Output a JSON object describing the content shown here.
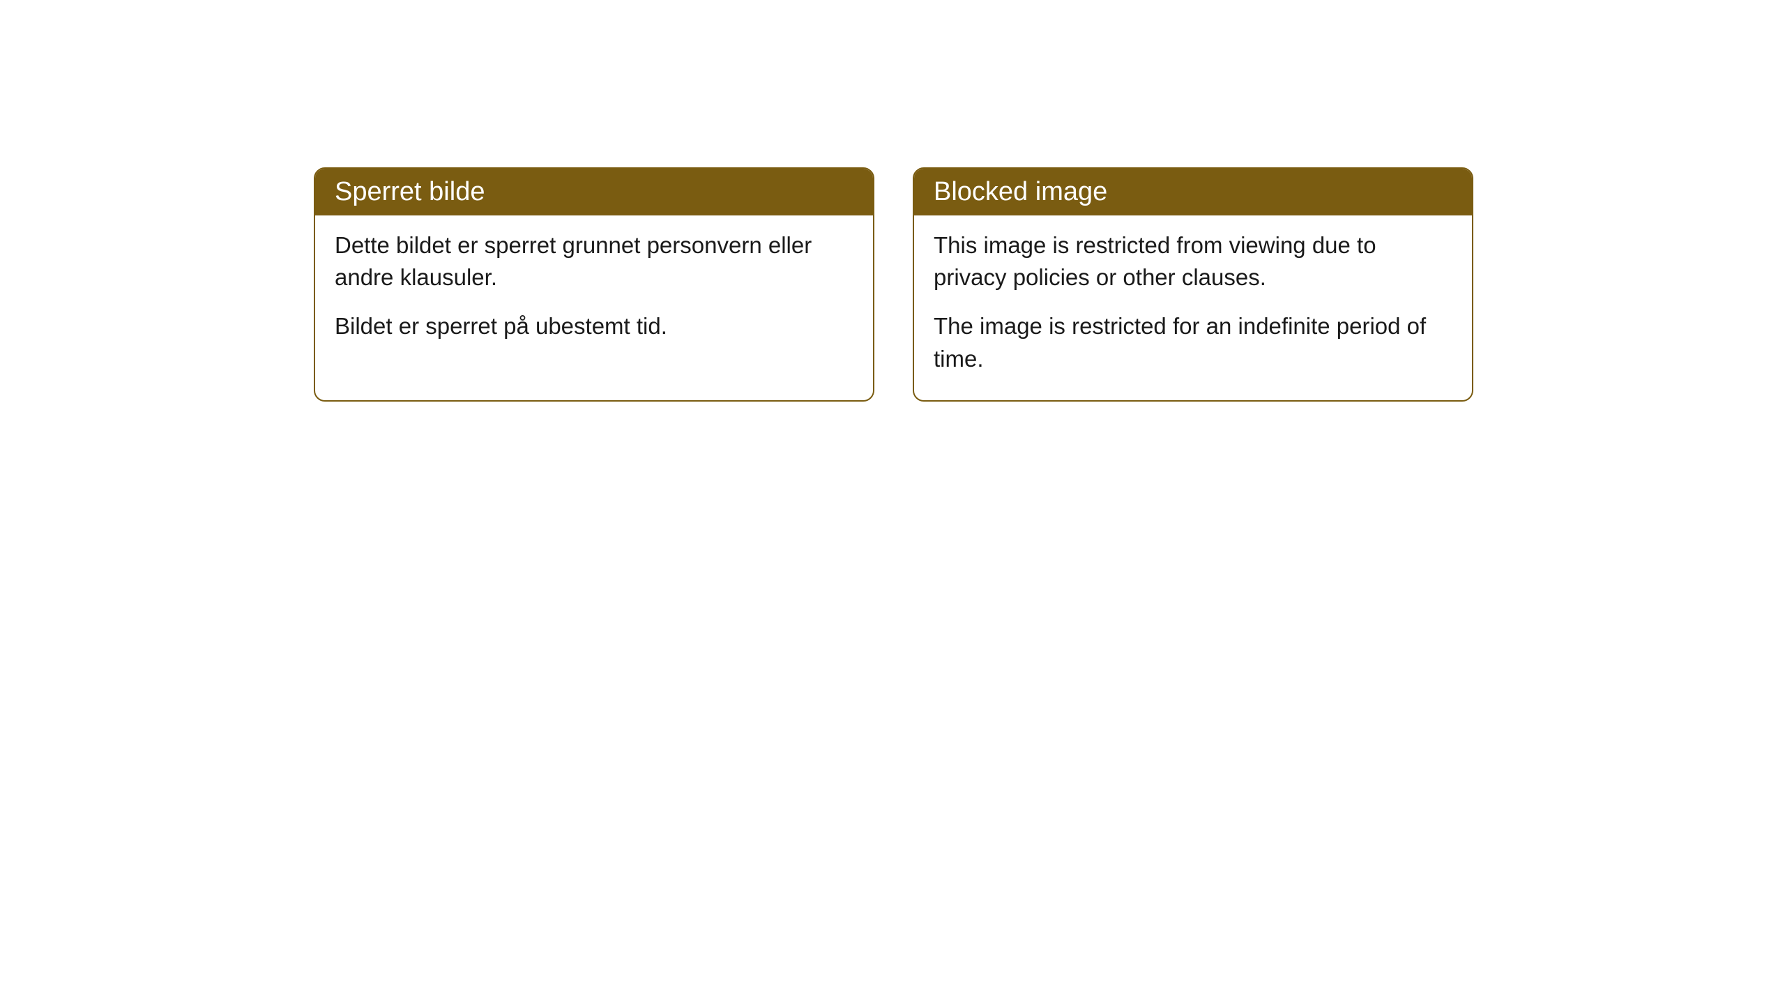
{
  "cards": [
    {
      "title": "Sperret bilde",
      "paragraph1": "Dette bildet er sperret grunnet personvern eller andre klausuler.",
      "paragraph2": "Bildet er sperret på ubestemt tid."
    },
    {
      "title": "Blocked image",
      "paragraph1": "This image is restricted from viewing due to privacy policies or other clauses.",
      "paragraph2": "The image is restricted for an indefinite period of time."
    }
  ],
  "styling": {
    "header_bg": "#7a5c11",
    "header_text_color": "#ffffff",
    "border_color": "#7a5c11",
    "body_bg": "#ffffff",
    "body_text_color": "#1a1a1a",
    "border_radius": 16,
    "header_fontsize": 38,
    "body_fontsize": 33
  }
}
